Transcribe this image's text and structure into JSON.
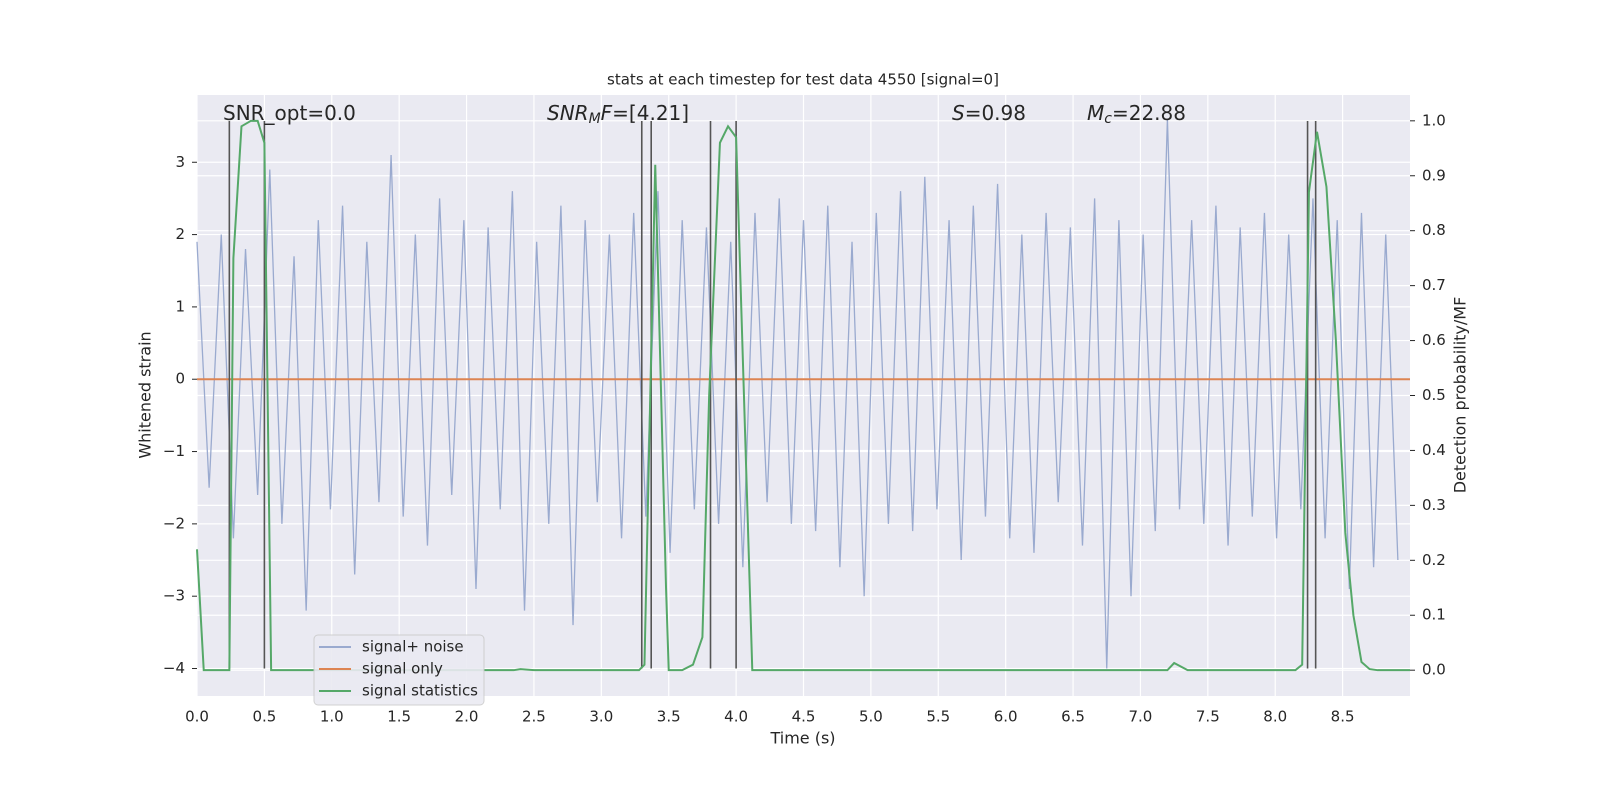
{
  "chart_data": {
    "type": "line",
    "title": "stats at each timestep for test data 4550 [signal=0]",
    "xlabel": "Time (s)",
    "ylabel": "Whitened strain",
    "y2label": "Detection probability/MF",
    "xlim": [
      0,
      9.0
    ],
    "ylim": [
      -4.38,
      3.93
    ],
    "y2lim": [
      -0.047,
      1.047
    ],
    "xticks": [
      {
        "value": 0,
        "label": "0.0"
      },
      0.5,
      {
        "value": 1,
        "label": "1.0"
      },
      1.5,
      {
        "value": 2,
        "label": "2.0"
      },
      2.5,
      {
        "value": 3,
        "label": "3.0"
      },
      3.5,
      {
        "value": 4,
        "label": "4.0"
      },
      4.5,
      {
        "value": 5,
        "label": "5.0"
      },
      5.5,
      {
        "value": 6,
        "label": "6.0"
      },
      6.5,
      {
        "value": 7,
        "label": "7.0"
      },
      7.5,
      {
        "value": 8,
        "label": "8.0"
      },
      8.5
    ],
    "yticks": [
      {
        "value": -4,
        "label": "−4"
      },
      {
        "value": -3,
        "label": "−3"
      },
      {
        "value": -2,
        "label": "−2"
      },
      {
        "value": -1,
        "label": "−1"
      },
      0,
      1,
      2,
      3
    ],
    "y2ticks": [
      {
        "value": 0,
        "label": "0.0"
      },
      0.1,
      0.2,
      0.3,
      0.4,
      0.5,
      0.6,
      0.7,
      0.8,
      0.9,
      {
        "value": 1,
        "label": "1.0"
      }
    ],
    "grid": true,
    "legend": "lower left",
    "series": [
      {
        "name": "signal+ noise",
        "color": "#9aaacf",
        "x": [
          0,
          0.09,
          0.18,
          0.27,
          0.36,
          0.45,
          0.54,
          0.63,
          0.72,
          0.81,
          0.9,
          0.99,
          1.08,
          1.17,
          1.26,
          1.35,
          1.44,
          1.53,
          1.62,
          1.71,
          1.8,
          1.89,
          1.98,
          2.07,
          2.16,
          2.25,
          2.34,
          2.43,
          2.52,
          2.61,
          2.7,
          2.79,
          2.88,
          2.97,
          3.06,
          3.15,
          3.24,
          3.33,
          3.42,
          3.51,
          3.6,
          3.69,
          3.78,
          3.87,
          3.96,
          4.05,
          4.14,
          4.23,
          4.32,
          4.41,
          4.5,
          4.59,
          4.68,
          4.77,
          4.86,
          4.95,
          5.04,
          5.13,
          5.22,
          5.31,
          5.4,
          5.49,
          5.58,
          5.67,
          5.76,
          5.85,
          5.94,
          6.03,
          6.12,
          6.21,
          6.3,
          6.39,
          6.48,
          6.57,
          6.66,
          6.75,
          6.84,
          6.93,
          7.02,
          7.11,
          7.2,
          7.29,
          7.38,
          7.47,
          7.56,
          7.65,
          7.74,
          7.83,
          7.92,
          8.01,
          8.1,
          8.19,
          8.28,
          8.37,
          8.46,
          8.55,
          8.64,
          8.73,
          8.82,
          8.91
        ],
        "values": [
          1.9,
          -1.5,
          2.0,
          -2.2,
          1.8,
          -1.6,
          2.9,
          -2.0,
          1.7,
          -3.2,
          2.2,
          -1.8,
          2.4,
          -2.7,
          1.9,
          -1.7,
          3.1,
          -1.9,
          2.0,
          -2.3,
          2.5,
          -1.6,
          2.2,
          -2.9,
          2.1,
          -1.8,
          2.6,
          -3.2,
          1.9,
          -2.0,
          2.4,
          -3.4,
          2.2,
          -1.7,
          2.0,
          -2.2,
          2.3,
          -1.9,
          2.6,
          -2.4,
          2.2,
          -1.8,
          2.1,
          -2.0,
          1.9,
          -2.6,
          2.3,
          -1.7,
          2.5,
          -2.0,
          2.2,
          -2.1,
          2.4,
          -2.6,
          1.9,
          -3.0,
          2.3,
          -2.0,
          2.6,
          -2.1,
          2.8,
          -1.8,
          2.2,
          -2.5,
          2.4,
          -1.9,
          2.7,
          -2.2,
          2.0,
          -2.4,
          2.3,
          -1.7,
          2.1,
          -2.3,
          2.5,
          -4.0,
          2.2,
          -3.0,
          2.0,
          -2.1,
          3.6,
          -1.8,
          2.2,
          -2.0,
          2.4,
          -2.3,
          2.1,
          -1.9,
          2.3,
          -2.2,
          2.0,
          -1.8,
          2.5,
          -2.2,
          2.2,
          -2.9,
          2.3,
          -2.6,
          2.0,
          -2.5
        ]
      },
      {
        "name": "signal only",
        "color": "#dd8452",
        "x": [
          0,
          9.0
        ],
        "values": [
          0,
          0
        ]
      },
      {
        "name": "signal statistics",
        "color": "#55a868",
        "axis": "y2",
        "x": [
          0,
          0.05,
          0.24,
          0.27,
          0.33,
          0.4,
          0.45,
          0.5,
          0.55,
          2.35,
          2.4,
          2.5,
          3.28,
          3.32,
          3.4,
          3.48,
          3.5,
          3.6,
          3.68,
          3.75,
          3.8,
          3.88,
          3.94,
          4.0,
          4.12,
          7.1,
          7.2,
          7.25,
          7.35,
          8.15,
          8.2,
          8.25,
          8.31,
          8.38,
          8.45,
          8.52,
          8.58,
          8.64,
          8.7,
          8.76,
          9.0
        ],
        "values": [
          0.22,
          0.0,
          0.0,
          0.75,
          0.99,
          1.0,
          1.0,
          0.96,
          0.0,
          0.0,
          0.002,
          0.0,
          0.0,
          0.01,
          0.92,
          0.15,
          0.0,
          0.0,
          0.01,
          0.06,
          0.5,
          0.96,
          0.99,
          0.97,
          0.0,
          0.0,
          0.0,
          0.013,
          0.0,
          0.0,
          0.01,
          0.87,
          0.98,
          0.88,
          0.6,
          0.25,
          0.1,
          0.015,
          0.002,
          0.0,
          0.0
        ]
      }
    ],
    "vlines": {
      "color": "#555555",
      "x": [
        0.24,
        0.5,
        3.3,
        3.37,
        3.81,
        4.0,
        8.24,
        8.3
      ],
      "ymin": -4,
      "ymax": 3.57
    },
    "annotations": [
      [
        {
          "text": "SNR_opt=0.0"
        }
      ],
      [
        {
          "text": "SNR",
          "italic": true
        },
        {
          "text": "M",
          "italic": true,
          "sub": true
        },
        {
          "text": "F",
          "italic": true
        },
        {
          "text": "=[4.21]"
        }
      ],
      [
        {
          "text": "S",
          "italic": true
        },
        {
          "text": "=0.98"
        }
      ],
      [
        {
          "text": "M",
          "italic": true
        },
        {
          "text": "c",
          "italic": true,
          "sub": true
        },
        {
          "text": "=22.88"
        }
      ]
    ]
  }
}
